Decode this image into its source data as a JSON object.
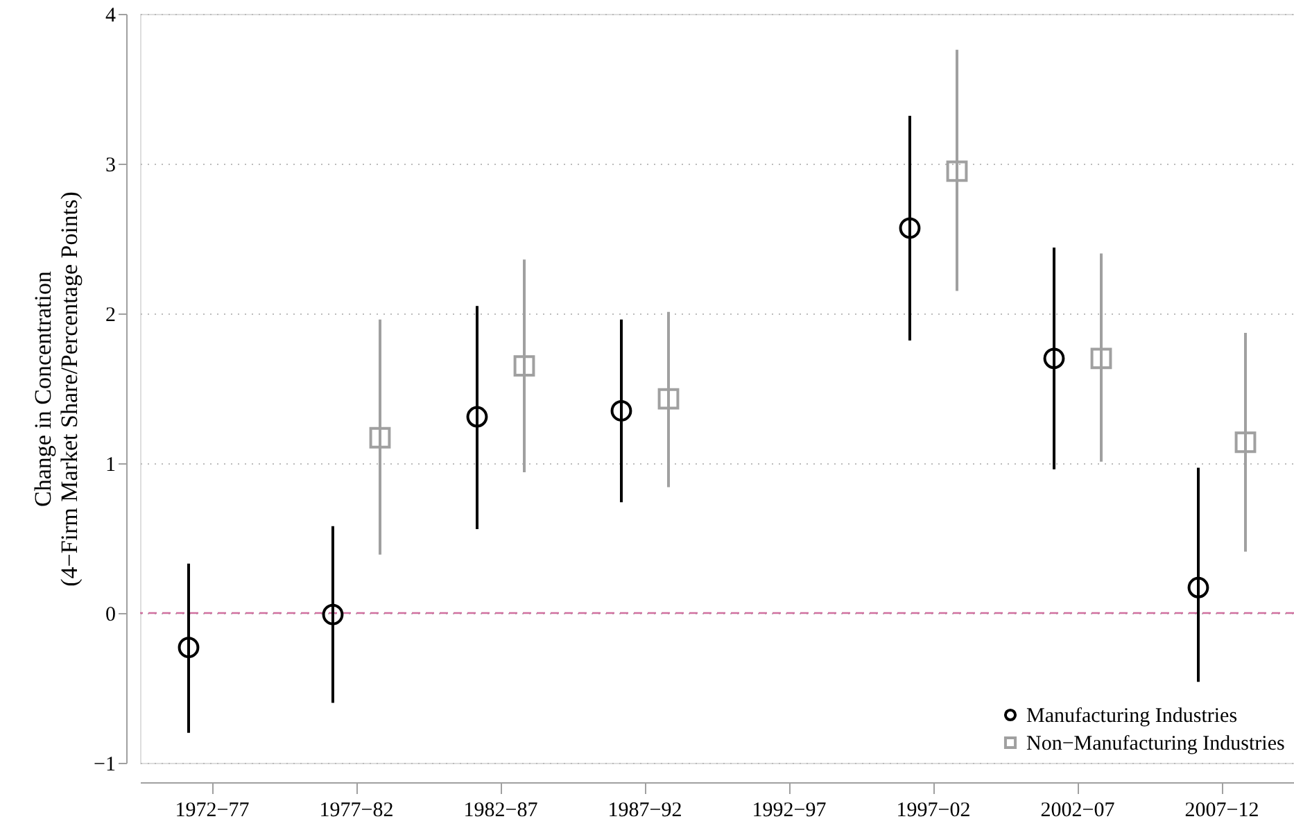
{
  "chart_data": {
    "type": "scatter",
    "ylabel": "Change in Concentration\n(4−Firm Market Share/Percentage Points)",
    "categories": [
      "1972−77",
      "1977−82",
      "1982−87",
      "1987−92",
      "1992−97",
      "1997−02",
      "2002−07",
      "2007−12"
    ],
    "series": [
      {
        "name": "Manufacturing Industries",
        "color": "#000000",
        "marker": "circle",
        "values": [
          -0.23,
          -0.01,
          1.31,
          1.35,
          null,
          2.57,
          1.7,
          0.17
        ],
        "errors": [
          [
            -0.8,
            0.33
          ],
          [
            -0.6,
            0.58
          ],
          [
            0.56,
            2.05
          ],
          [
            0.74,
            1.96
          ],
          null,
          [
            1.82,
            3.32
          ],
          [
            0.96,
            2.44
          ],
          [
            -0.46,
            0.97
          ]
        ]
      },
      {
        "name": "Non−Manufacturing Industries",
        "color": "#a0a0a0",
        "marker": "square",
        "values": [
          null,
          1.17,
          1.65,
          1.43,
          null,
          2.95,
          1.7,
          1.14
        ],
        "errors": [
          null,
          [
            0.39,
            1.96
          ],
          [
            0.94,
            2.36
          ],
          [
            0.84,
            2.01
          ],
          null,
          [
            2.15,
            3.76
          ],
          [
            1.01,
            2.4
          ],
          [
            0.41,
            1.87
          ]
        ]
      }
    ],
    "ylim": [
      -1,
      4
    ],
    "yticks": [
      {
        "value": -1,
        "label": "−1"
      },
      0,
      1,
      2,
      3,
      4
    ],
    "ref_lines": [
      {
        "axis": "y",
        "value": 0,
        "color": "#d0709f",
        "line_style": "dashed"
      }
    ],
    "grid": "y",
    "legend": "bottom right"
  }
}
